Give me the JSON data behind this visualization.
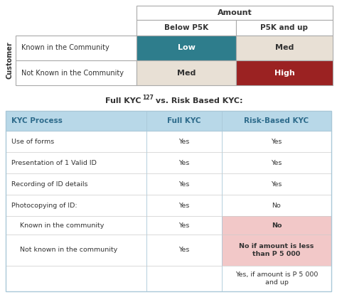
{
  "bg_color": "#ffffff",
  "top_table": {
    "title": "Amount",
    "col_headers": [
      "Below P5K",
      "P5K and up"
    ],
    "row_header_label": "Customer",
    "rows": [
      {
        "label": "Known in the Community",
        "cells": [
          {
            "text": "Low",
            "bg": "#2e7d8c",
            "fg": "#ffffff",
            "bold": true
          },
          {
            "text": "Med",
            "bg": "#e8e0d5",
            "fg": "#333333",
            "bold": true
          }
        ]
      },
      {
        "label": "Not Known in the Community",
        "cells": [
          {
            "text": "Med",
            "bg": "#e8e0d5",
            "fg": "#333333",
            "bold": true
          },
          {
            "text": "High",
            "bg": "#9b2222",
            "fg": "#ffffff",
            "bold": true
          }
        ]
      }
    ]
  },
  "bottom_table": {
    "title": "Full KYC",
    "title_superscript": "127",
    "title_suffix": " vs. Risk Based KYC:",
    "header_bg": "#b8d8e8",
    "header_fg": "#2e6b8b",
    "row_separator_color": "#cccccc",
    "outer_border_color": "#aac8d8",
    "col_headers": [
      "KYC Process",
      "Full KYC",
      "Risk-Based KYC"
    ],
    "rows": [
      {
        "cells": [
          "Use of forms",
          "Yes",
          "Yes"
        ],
        "bgs": [
          "#ffffff",
          "#ffffff",
          "#ffffff"
        ],
        "bold_last": false
      },
      {
        "cells": [
          "Presentation of 1 Valid ID",
          "Yes",
          "Yes"
        ],
        "bgs": [
          "#ffffff",
          "#ffffff",
          "#ffffff"
        ],
        "bold_last": false
      },
      {
        "cells": [
          "Recording of ID details",
          "Yes",
          "Yes"
        ],
        "bgs": [
          "#ffffff",
          "#ffffff",
          "#ffffff"
        ],
        "bold_last": false
      },
      {
        "cells": [
          "Photocopying of ID:",
          "Yes",
          "No"
        ],
        "bgs": [
          "#ffffff",
          "#ffffff",
          "#ffffff"
        ],
        "bold_last": false
      },
      {
        "cells": [
          "    Known in the community",
          "Yes",
          "No"
        ],
        "bgs": [
          "#ffffff",
          "#ffffff",
          "#f2c8c8"
        ],
        "bold_last": true
      },
      {
        "cells": [
          "    Not known in the community",
          "Yes",
          "No if amount is less\nthan P 5 000"
        ],
        "bgs": [
          "#ffffff",
          "#ffffff",
          "#f2c8c8"
        ],
        "bold_last": true
      },
      {
        "cells": [
          "",
          "",
          "Yes, if amount is P 5 000\nand up"
        ],
        "bgs": [
          "#ffffff",
          "#ffffff",
          "#ffffff"
        ],
        "bold_last": false
      }
    ]
  }
}
